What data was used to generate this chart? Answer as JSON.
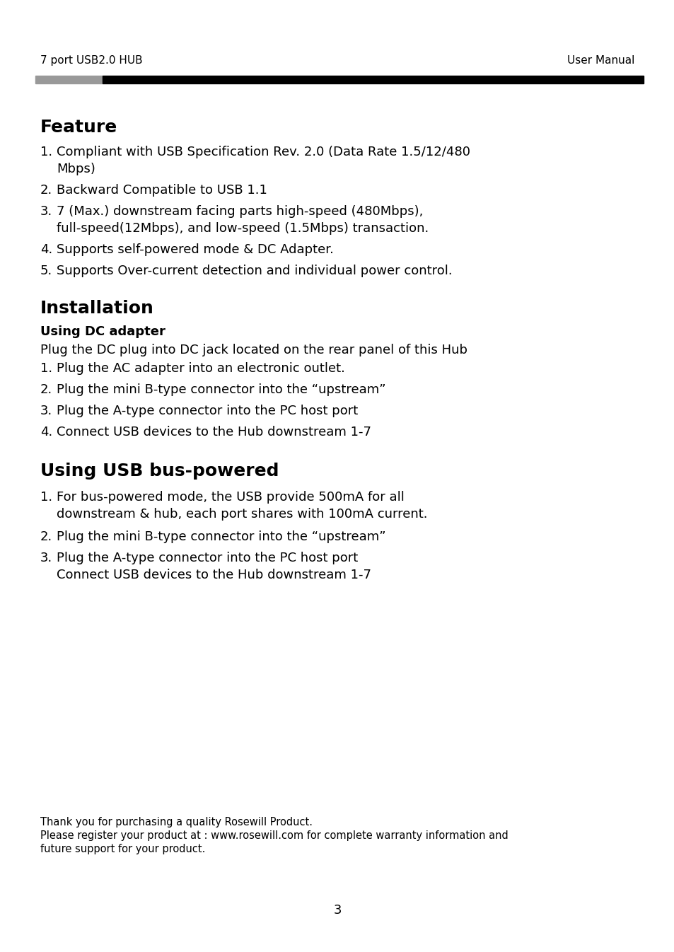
{
  "header_left": "7 port USB2.0 HUB",
  "header_right": "User Manual",
  "section1_title": "Feature",
  "feature_items": [
    [
      "Compliant with USB Specification Rev. 2.0 (Data Rate 1.5/12/480",
      "Mbps)"
    ],
    [
      "Backward Compatible to USB 1.1"
    ],
    [
      "7 (Max.) downstream facing parts high-speed (480Mbps),",
      "full-speed(12Mbps), and low-speed (1.5Mbps) transaction."
    ],
    [
      "Supports self-powered mode & DC Adapter."
    ],
    [
      "Supports Over-current detection and individual power control."
    ]
  ],
  "section2_title": "Installation",
  "subsection2_title": "Using DC adapter",
  "dc_intro": "Plug the DC plug into DC jack located on the rear panel of this Hub",
  "dc_items": [
    [
      "Plug the AC adapter into an electronic outlet."
    ],
    [
      "Plug the mini B-type connector into the “upstream”"
    ],
    [
      "Plug the A-type connector into the PC host port"
    ],
    [
      "Connect USB devices to the Hub downstream 1-7"
    ]
  ],
  "section3_title": "Using USB bus-powered",
  "usb_items": [
    [
      "For bus-powered mode, the USB provide 500mA for all",
      "downstream & hub, each port shares with 100mA current."
    ],
    [
      "Plug the mini B-type connector into the “upstream”"
    ],
    [
      "Plug the A-type connector into the PC host port",
      "Connect USB devices to the Hub downstream 1-7"
    ]
  ],
  "footer_line1": "Thank you for purchasing a quality Rosewill Product.",
  "footer_line2": "Please register your product at : www.rosewill.com for complete warranty information and",
  "footer_line3": "future support for your product.",
  "page_number": "3",
  "bg_color": "#ffffff",
  "text_color": "#000000",
  "header_fontsize": 11,
  "section_title_fontsize": 18,
  "subsection_fontsize": 13,
  "body_fontsize": 13,
  "footer_fontsize": 10.5
}
